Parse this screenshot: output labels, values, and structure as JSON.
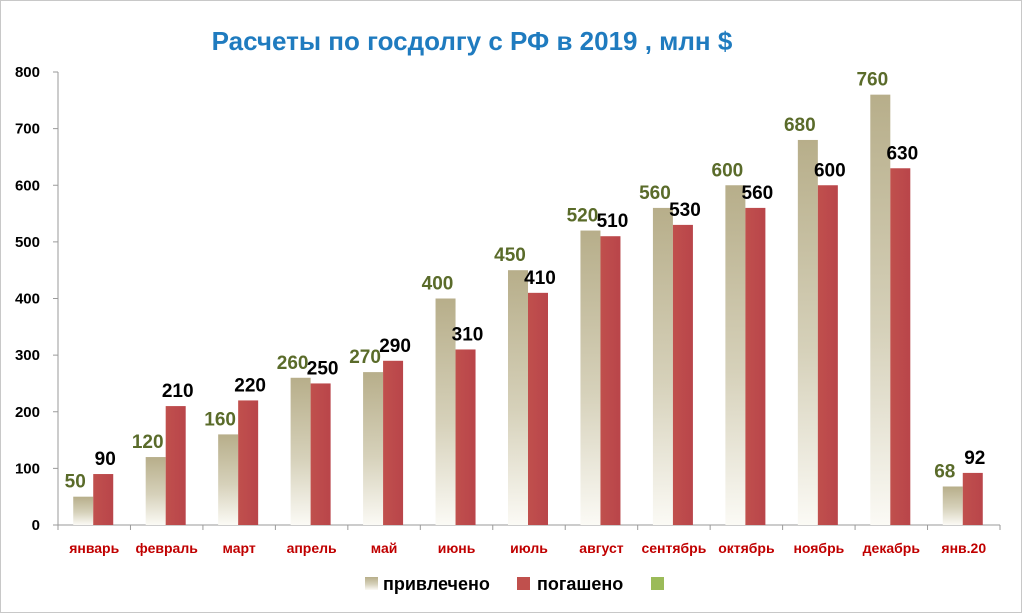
{
  "chart_data": {
    "type": "bar",
    "title": "Расчеты по госдолгу с РФ в 2019 , млн $",
    "xlabel": "",
    "ylabel": "",
    "categories": [
      "январь",
      "февраль",
      "март",
      "апрель",
      "май",
      "июнь",
      "июль",
      "август",
      "сентябрь",
      "октябрь",
      "ноябрь",
      "декабрь",
      "янв.20"
    ],
    "series": [
      {
        "name": "привлечено",
        "color": "#c8c2a4",
        "values": [
          50,
          120,
          160,
          260,
          270,
          400,
          450,
          520,
          560,
          600,
          680,
          760,
          68
        ]
      },
      {
        "name": "погашено",
        "color": "#c0504d",
        "values": [
          90,
          210,
          220,
          250,
          290,
          310,
          410,
          510,
          530,
          560,
          600,
          630,
          92
        ]
      }
    ],
    "extra_legend_color": "#9bbb59",
    "ylim": [
      0,
      800
    ],
    "yticks": [
      0,
      100,
      200,
      300,
      400,
      500,
      600,
      700,
      800
    ],
    "grid": false,
    "legend": "bottom"
  }
}
